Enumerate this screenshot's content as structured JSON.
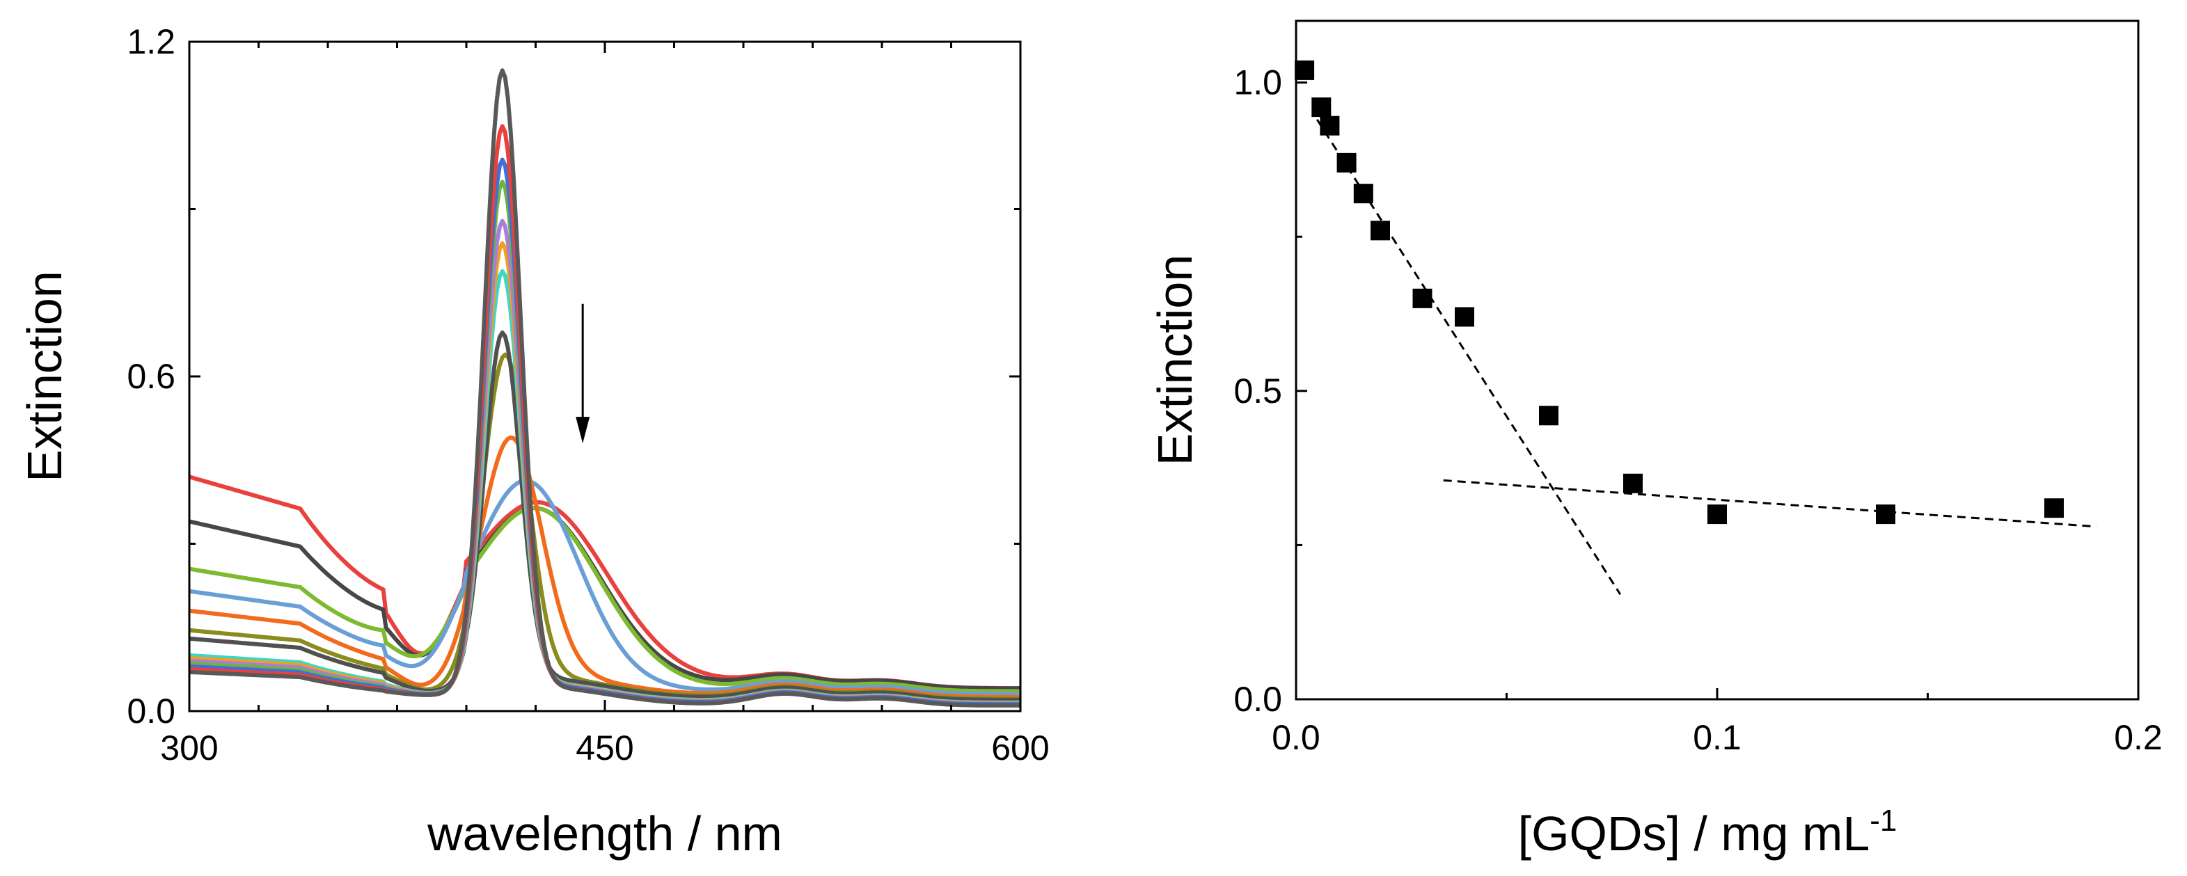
{
  "chart_data": [
    {
      "type": "line",
      "panel": "left",
      "xlabel": "wavelength / nm",
      "ylabel": "Extinction",
      "xlim": [
        300,
        600
      ],
      "ylim": [
        0,
        1.2
      ],
      "xticks": [
        300,
        450,
        600
      ],
      "xtick_labels": [
        "300",
        "450",
        "600"
      ],
      "yticks": [
        0,
        0.6,
        1.2
      ],
      "ytick_labels": [
        "0.0",
        "0.6",
        "1.2"
      ],
      "annotation": "downward arrow near 442 nm indicating decreasing peak extinction with increasing [GQDs]",
      "series": [
        {
          "name": "s1",
          "color": "#595959",
          "peak_nm": 413,
          "peak_value": 1.13,
          "baseline_300": 0.07,
          "tail_600": 0.01
        },
        {
          "name": "s2",
          "color": "#e8413e",
          "peak_nm": 413,
          "peak_value": 1.03,
          "baseline_300": 0.075,
          "tail_600": 0.01
        },
        {
          "name": "s3",
          "color": "#3f6fd8",
          "peak_nm": 413,
          "peak_value": 0.97,
          "baseline_300": 0.08,
          "tail_600": 0.012
        },
        {
          "name": "s4",
          "color": "#6cb33f",
          "peak_nm": 413,
          "peak_value": 0.93,
          "baseline_300": 0.085,
          "tail_600": 0.012
        },
        {
          "name": "s5",
          "color": "#a87fd6",
          "peak_nm": 413,
          "peak_value": 0.86,
          "baseline_300": 0.09,
          "tail_600": 0.013
        },
        {
          "name": "s6",
          "color": "#f0a01e",
          "peak_nm": 413,
          "peak_value": 0.82,
          "baseline_300": 0.095,
          "tail_600": 0.014
        },
        {
          "name": "s7",
          "color": "#3ed6c8",
          "peak_nm": 413,
          "peak_value": 0.77,
          "baseline_300": 0.1,
          "tail_600": 0.015
        },
        {
          "name": "s8",
          "color": "#505050",
          "peak_nm": 413,
          "peak_value": 0.66,
          "baseline_300": 0.13,
          "tail_600": 0.02
        },
        {
          "name": "s9",
          "color": "#8b8b1e",
          "peak_nm": 414,
          "peak_value": 0.62,
          "baseline_300": 0.145,
          "tail_600": 0.022
        },
        {
          "name": "s10",
          "color": "#f26b1d",
          "peak_nm": 416,
          "peak_value": 0.47,
          "baseline_300": 0.18,
          "tail_600": 0.025
        },
        {
          "name": "s11",
          "color": "#6a9fd6",
          "peak_nm": 421,
          "peak_value": 0.39,
          "baseline_300": 0.215,
          "tail_600": 0.03
        },
        {
          "name": "s12",
          "color": "#7dba2f",
          "peak_nm": 424,
          "peak_value": 0.34,
          "baseline_300": 0.255,
          "tail_600": 0.035
        },
        {
          "name": "s13",
          "color": "#474747",
          "peak_nm": 424,
          "peak_value": 0.34,
          "baseline_300": 0.34,
          "tail_600": 0.04
        },
        {
          "name": "s14",
          "color": "#e8413e",
          "peak_nm": 425,
          "peak_value": 0.35,
          "baseline_300": 0.42,
          "tail_600": 0.04
        }
      ]
    },
    {
      "type": "scatter",
      "panel": "right",
      "xlabel": "[GQDs] / mg mL",
      "xlabel_sup": "-1",
      "ylabel": "Extinction",
      "xlim": [
        0,
        0.2
      ],
      "ylim": [
        0,
        1.1
      ],
      "xticks": [
        0.0,
        0.1,
        0.2
      ],
      "xtick_labels": [
        "0.0",
        "0.1",
        "0.2"
      ],
      "yticks": [
        0.0,
        0.5,
        1.0
      ],
      "ytick_labels": [
        "0.0",
        "0.5",
        "1.0"
      ],
      "points": {
        "x": [
          0.002,
          0.006,
          0.008,
          0.012,
          0.016,
          0.02,
          0.03,
          0.04,
          0.06,
          0.08,
          0.1,
          0.14,
          0.18
        ],
        "y": [
          1.02,
          0.96,
          0.93,
          0.87,
          0.82,
          0.76,
          0.65,
          0.62,
          0.46,
          0.35,
          0.3,
          0.3,
          0.31
        ]
      },
      "fit_lines": [
        {
          "name": "steep fit",
          "x": [
            0.005,
            0.077
          ],
          "y": [
            0.94,
            0.17
          ]
        },
        {
          "name": "flat fit",
          "x": [
            0.035,
            0.19
          ],
          "y": [
            0.355,
            0.28
          ]
        }
      ]
    }
  ]
}
